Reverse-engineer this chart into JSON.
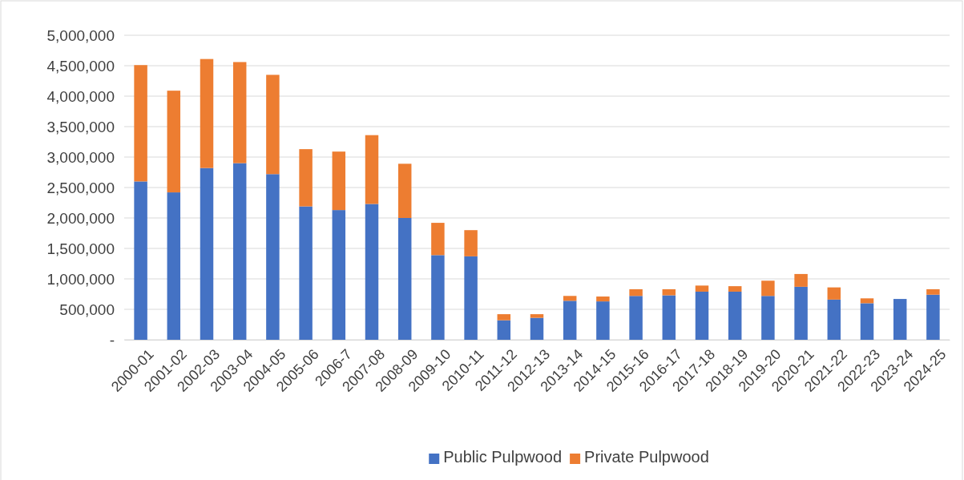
{
  "chart_data": {
    "type": "bar",
    "stacked": true,
    "categories": [
      "2000-01",
      "2001-02",
      "2002-03",
      "2003-04",
      "2004-05",
      "2005-06",
      "2006-7",
      "2007-08",
      "2008-09",
      "2009-10",
      "2010-11",
      "2011-12",
      "2012-13",
      "2013-14",
      "2014-15",
      "2015-16",
      "2016-17",
      "2017-18",
      "2018-19",
      "2019-20",
      "2020-21",
      "2021-22",
      "2022-23",
      "2023-24",
      "2024-25"
    ],
    "series": [
      {
        "name": "Public Pulpwood",
        "color": "#4472c4",
        "values": [
          2600000,
          2420000,
          2820000,
          2900000,
          2720000,
          2190000,
          2130000,
          2230000,
          2000000,
          1390000,
          1370000,
          320000,
          360000,
          640000,
          630000,
          720000,
          730000,
          790000,
          790000,
          720000,
          870000,
          660000,
          600000,
          670000,
          740000
        ]
      },
      {
        "name": "Private Pulpwood",
        "color": "#ed7d31",
        "values": [
          1910000,
          1670000,
          1790000,
          1660000,
          1630000,
          940000,
          960000,
          1130000,
          890000,
          530000,
          430000,
          100000,
          60000,
          80000,
          80000,
          110000,
          100000,
          100000,
          90000,
          250000,
          210000,
          200000,
          80000,
          0,
          90000
        ]
      }
    ],
    "ylim": [
      0,
      5000000
    ],
    "yticks": [
      {
        "value": 0,
        "label": "-"
      },
      {
        "value": 500000,
        "label": "500,000"
      },
      {
        "value": 1000000,
        "label": "1,000,000"
      },
      {
        "value": 1500000,
        "label": "1,500,000"
      },
      {
        "value": 2000000,
        "label": "2,000,000"
      },
      {
        "value": 2500000,
        "label": "2,500,000"
      },
      {
        "value": 3000000,
        "label": "3,000,000"
      },
      {
        "value": 3500000,
        "label": "3,500,000"
      },
      {
        "value": 4000000,
        "label": "4,000,000"
      },
      {
        "value": 4500000,
        "label": "4,500,000"
      },
      {
        "value": 5000000,
        "label": "5,000,000"
      }
    ],
    "grid": "y",
    "legend": "bottom"
  }
}
